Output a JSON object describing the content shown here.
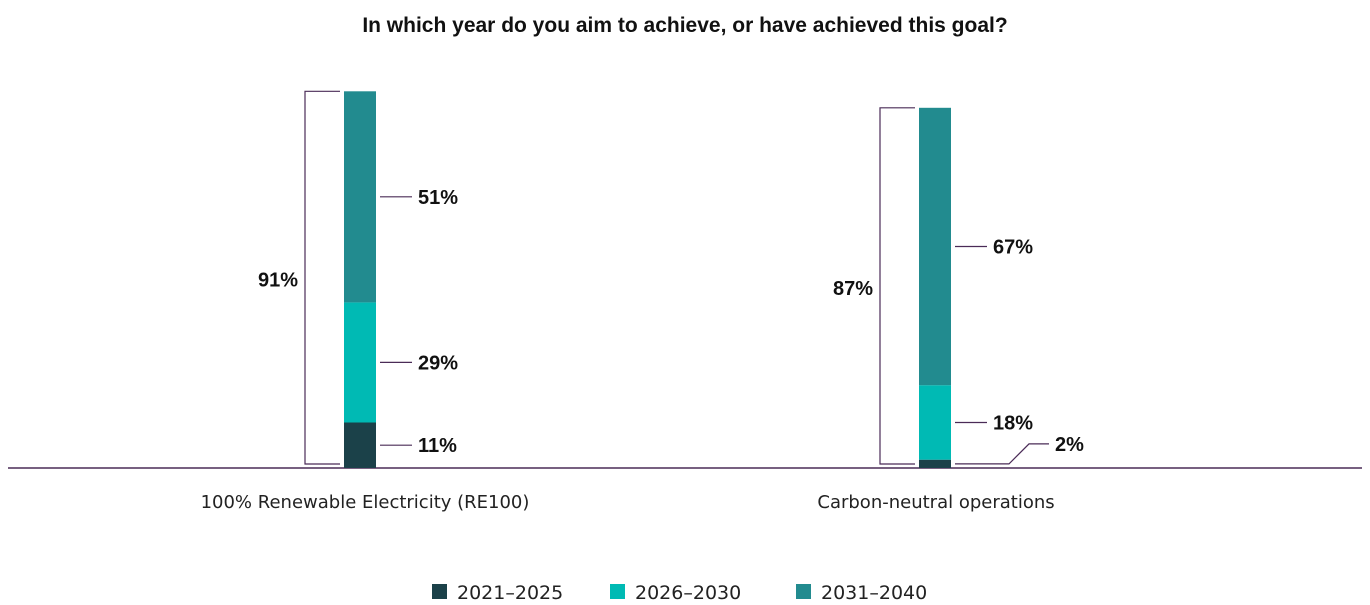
{
  "chart_data": {
    "type": "bar",
    "stacked": true,
    "title": "In which year do you aim to achieve, or have achieved this goal?",
    "categories": [
      "100% Renewable Electricity (RE100)",
      "Carbon-neutral operations"
    ],
    "series": [
      {
        "name": "2021–2025",
        "values": [
          11,
          2
        ],
        "labels": [
          "11%",
          "2%"
        ],
        "color": "#1b4149"
      },
      {
        "name": "2026–2030",
        "values": [
          29,
          18
        ],
        "labels": [
          "29%",
          "18%"
        ],
        "color": "#00bab4"
      },
      {
        "name": "2031–2040",
        "values": [
          51,
          67
        ],
        "labels": [
          "51%",
          "67%"
        ],
        "color": "#228b8f"
      }
    ],
    "totals": [
      91,
      87
    ],
    "total_labels": [
      "91%",
      "87%"
    ],
    "legend_position": "bottom",
    "bracket_color": "#4a2b57",
    "axis_color": "#4a2b57",
    "grid": false
  }
}
